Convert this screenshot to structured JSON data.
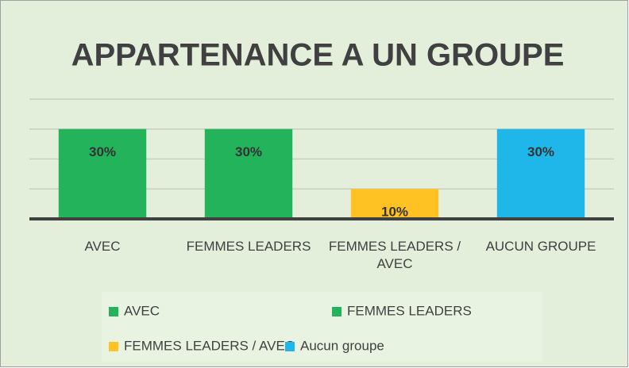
{
  "chart_data": {
    "type": "bar",
    "title": "APPARTENANCE A UN GROUPE",
    "categories": [
      "AVEC",
      "FEMMES LEADERS",
      "FEMMES LEADERS / AVEC",
      "AUCUN GROUPE"
    ],
    "values": [
      30,
      30,
      10,
      30
    ],
    "value_labels": [
      "30%",
      "30%",
      "10%",
      "30%"
    ],
    "colors": [
      "#22b35b",
      "#22b35b",
      "#ffc222",
      "#1fb7ea"
    ],
    "legend": [
      "AVEC",
      "FEMMES LEADERS",
      "FEMMES LEADERS / AVEC",
      "Aucun groupe"
    ],
    "ylim": [
      0,
      40
    ],
    "yticks": [
      0,
      10,
      20,
      30,
      40
    ],
    "grid": true
  }
}
